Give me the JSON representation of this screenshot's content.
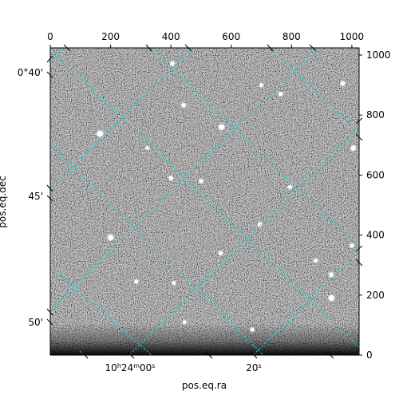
{
  "chart_data": {
    "type": "image",
    "title": "",
    "image": {
      "colormap": "grayscale",
      "pixel_xlim": [
        0,
        1024
      ],
      "pixel_ylim": [
        0,
        1024
      ],
      "stars": [
        {
          "x": 165,
          "y": 738,
          "bright": 1.0
        },
        {
          "x": 405,
          "y": 972,
          "bright": 0.6
        },
        {
          "x": 442,
          "y": 833,
          "bright": 0.55
        },
        {
          "x": 568,
          "y": 760,
          "bright": 0.85
        },
        {
          "x": 764,
          "y": 870,
          "bright": 0.5
        },
        {
          "x": 970,
          "y": 905,
          "bright": 0.6
        },
        {
          "x": 1005,
          "y": 690,
          "bright": 0.7
        },
        {
          "x": 400,
          "y": 590,
          "bright": 0.5
        },
        {
          "x": 500,
          "y": 580,
          "bright": 0.45
        },
        {
          "x": 795,
          "y": 560,
          "bright": 0.45
        },
        {
          "x": 695,
          "y": 435,
          "bright": 0.5
        },
        {
          "x": 200,
          "y": 392,
          "bright": 0.9
        },
        {
          "x": 565,
          "y": 340,
          "bright": 0.45
        },
        {
          "x": 880,
          "y": 315,
          "bright": 0.45
        },
        {
          "x": 932,
          "y": 268,
          "bright": 0.55
        },
        {
          "x": 1000,
          "y": 365,
          "bright": 0.45
        },
        {
          "x": 285,
          "y": 245,
          "bright": 0.45
        },
        {
          "x": 410,
          "y": 240,
          "bright": 0.4
        },
        {
          "x": 932,
          "y": 190,
          "bright": 0.9
        },
        {
          "x": 670,
          "y": 85,
          "bright": 0.5
        },
        {
          "x": 445,
          "y": 110,
          "bright": 0.4
        },
        {
          "x": 322,
          "y": 690,
          "bright": 0.35
        },
        {
          "x": 700,
          "y": 900,
          "bright": 0.4
        }
      ]
    },
    "top_axis": {
      "ticks": [
        0,
        200,
        400,
        600,
        800,
        1000
      ],
      "labels": [
        "0",
        "200",
        "400",
        "600",
        "800",
        "1000"
      ]
    },
    "right_axis": {
      "ticks": [
        0,
        200,
        400,
        600,
        800,
        1000
      ],
      "labels": [
        "0",
        "200",
        "400",
        "600",
        "800",
        "1000"
      ]
    },
    "xlabel": "pos.eq.ra",
    "ylabel": "pos.eq.dec",
    "ra_ticks": [
      {
        "label_base": "10",
        "label_h": "h",
        "label_mid": "24",
        "label_m": "m",
        "label_end": "00",
        "label_s": "s"
      },
      {
        "label_base": "20",
        "label_s": "s"
      }
    ],
    "dec_ticks": [
      "0°40'",
      "45'",
      "50'"
    ],
    "grid": {
      "color": "#00e5e5",
      "style": "dashed",
      "on": true
    }
  }
}
